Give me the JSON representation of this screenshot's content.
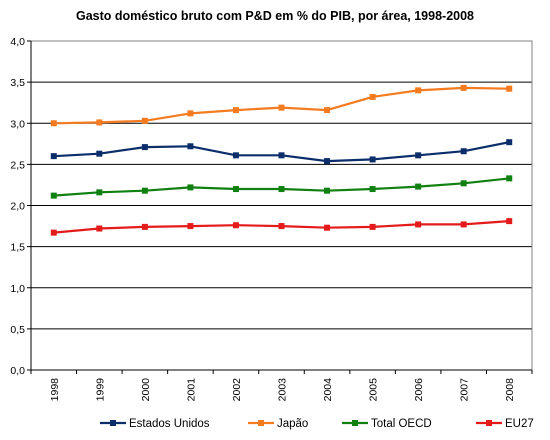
{
  "chart_data": {
    "type": "line",
    "title": "Gasto doméstico bruto com P&D em  % do PIB, por área, 1998-2008",
    "xlabel": "",
    "ylabel": "",
    "x": [
      "1998",
      "1999",
      "2000",
      "2001",
      "2002",
      "2003",
      "2004",
      "2005",
      "2006",
      "2007",
      "2008"
    ],
    "ylim": [
      0,
      4
    ],
    "ytick_values": [
      0,
      0.5,
      1,
      1.5,
      2,
      2.5,
      3,
      3.5,
      4
    ],
    "yticks": [
      "0,0",
      "0,5",
      "1,0",
      "1,5",
      "2,0",
      "2,5",
      "3,0",
      "3,5",
      "4,0"
    ],
    "grid": "horizontal",
    "legend_position": "bottom",
    "series": [
      {
        "name": "Estados Unidos",
        "color": "#0b2e6b",
        "values": [
          2.6,
          2.63,
          2.71,
          2.72,
          2.61,
          2.61,
          2.54,
          2.56,
          2.61,
          2.66,
          2.77
        ]
      },
      {
        "name": "Japão",
        "color": "#f47b20",
        "values": [
          3.0,
          3.01,
          3.03,
          3.12,
          3.16,
          3.19,
          3.16,
          3.32,
          3.4,
          3.43,
          3.42
        ]
      },
      {
        "name": "Total OECD",
        "color": "#108010",
        "values": [
          2.12,
          2.16,
          2.18,
          2.22,
          2.2,
          2.2,
          2.18,
          2.2,
          2.23,
          2.27,
          2.33
        ]
      },
      {
        "name": "EU27",
        "color": "#e51b1b",
        "values": [
          1.67,
          1.72,
          1.74,
          1.75,
          1.76,
          1.75,
          1.73,
          1.74,
          1.77,
          1.77,
          1.81
        ]
      }
    ]
  }
}
